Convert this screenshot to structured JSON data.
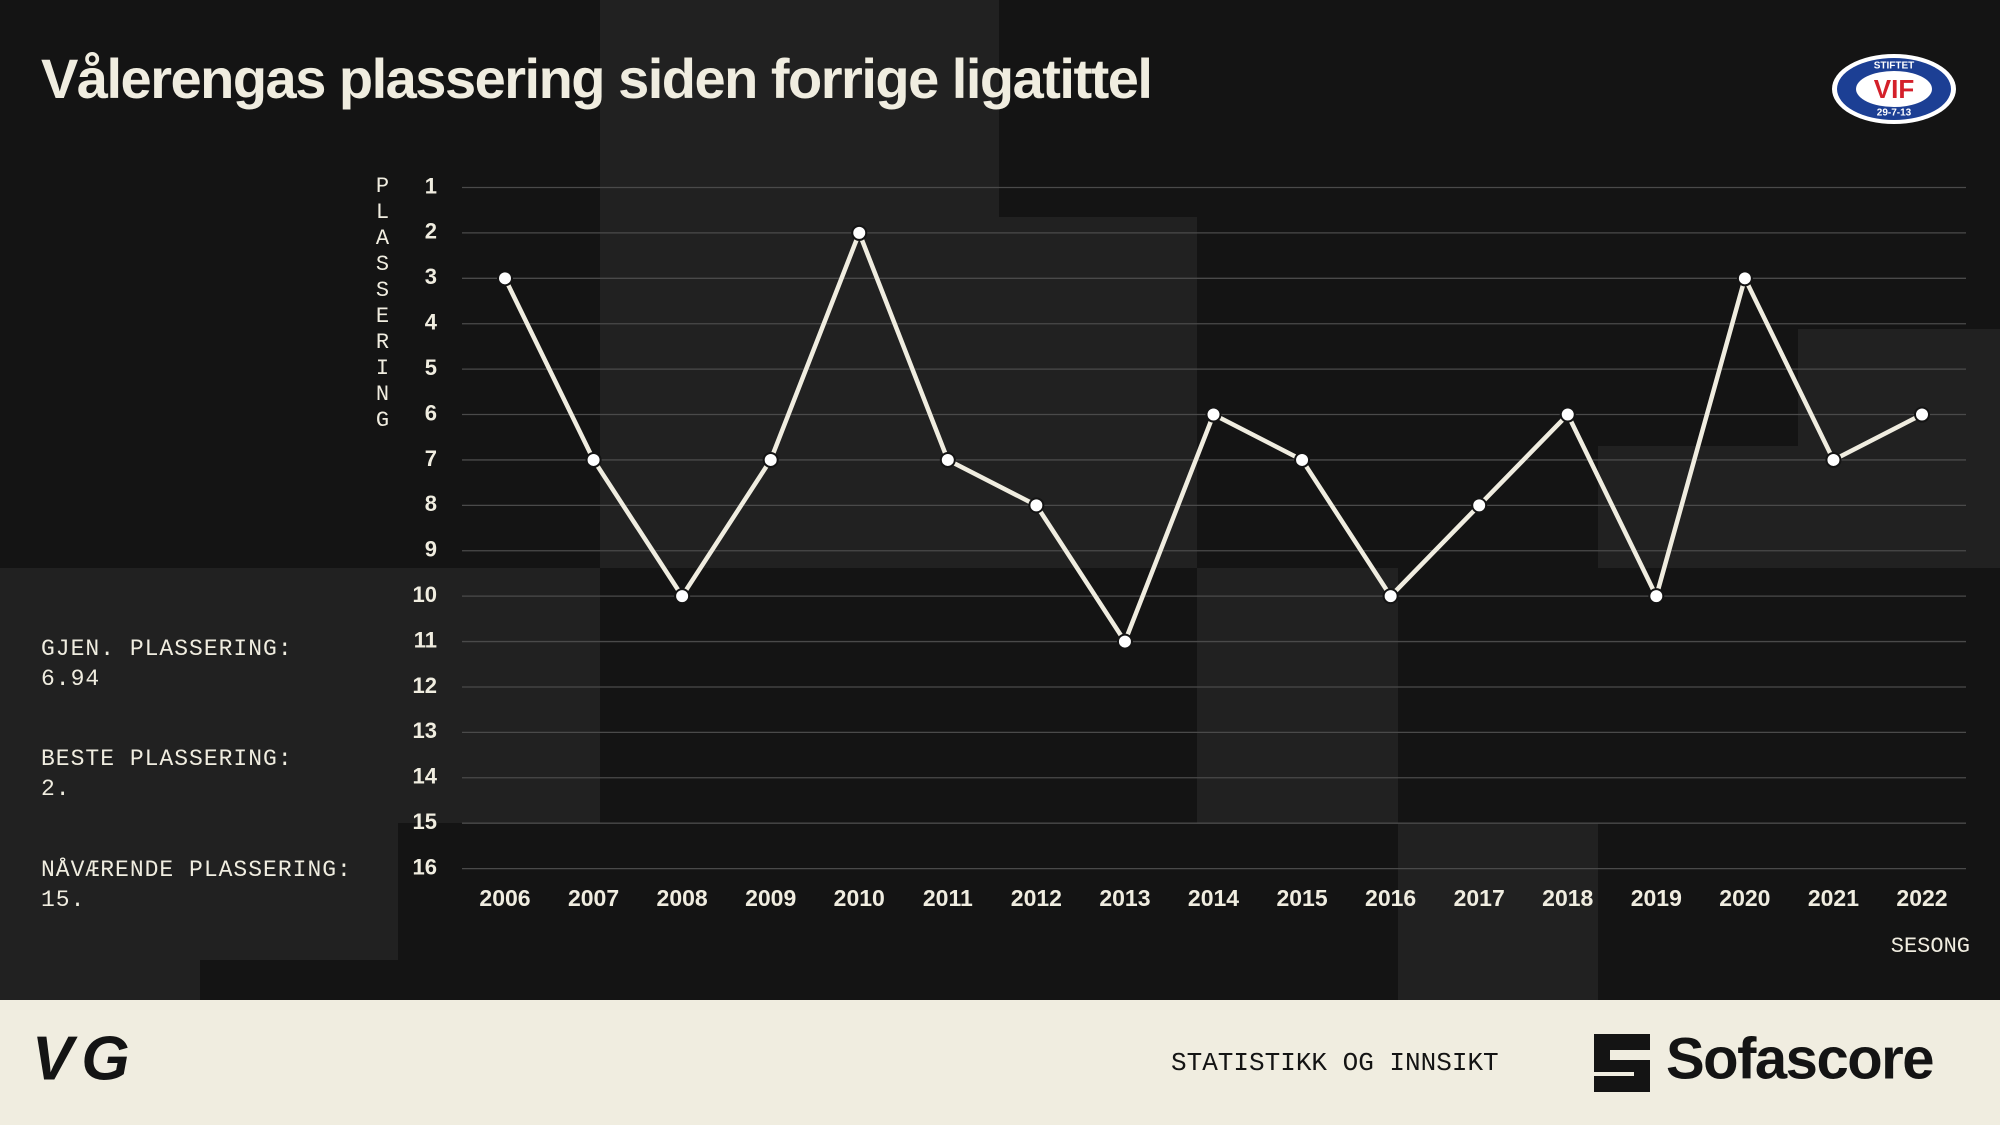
{
  "chart_data": {
    "type": "line",
    "title": "Vålerengas plassering siden forrige ligatittel",
    "y_label": "PLASSERING",
    "x_label": "SESONG",
    "categories": [
      "2006",
      "2007",
      "2008",
      "2009",
      "2010",
      "2011",
      "2012",
      "2013",
      "2014",
      "2015",
      "2016",
      "2017",
      "2018",
      "2019",
      "2020",
      "2021",
      "2022"
    ],
    "values": [
      3,
      7,
      10,
      7,
      2,
      7,
      8,
      11,
      6,
      7,
      10,
      8,
      6,
      10,
      3,
      7,
      6
    ],
    "color": "#f0ede0",
    "ylim": [
      1,
      16
    ],
    "y_inverted": true,
    "yticks": [
      1,
      2,
      3,
      4,
      5,
      6,
      7,
      8,
      9,
      10,
      11,
      12,
      13,
      14,
      15,
      16
    ],
    "grid": true
  },
  "stats": [
    {
      "label": "GJEN. PLASSERING:",
      "value": "6.94"
    },
    {
      "label": "BESTE PLASSERING:",
      "value": "2."
    },
    {
      "label": "NÅVÆRENDE PLASSERING:",
      "value": "15."
    }
  ],
  "badge": {
    "top": "STIFTET",
    "name": "VIF",
    "bottom": "29-7-13"
  },
  "footer": {
    "left_logo": "VG",
    "tagline": "STATISTIKK OG INNSIKT",
    "brand": "Sofascore"
  }
}
